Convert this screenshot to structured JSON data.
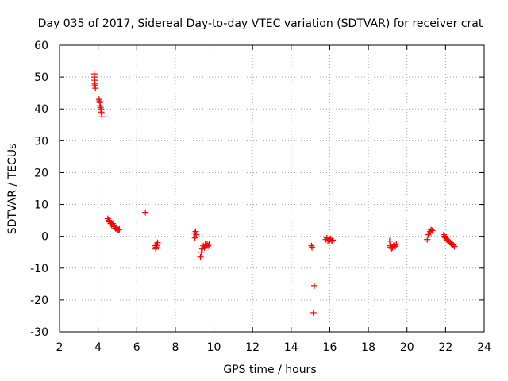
{
  "chart_data": {
    "type": "scatter",
    "title": "Day 035 of 2017, Sidereal Day-to-day VTEC variation (SDTVAR) for receiver crat",
    "xlabel": "GPS time / hours",
    "ylabel": "SDTVAR / TECUs",
    "xlim": [
      2,
      24
    ],
    "ylim": [
      -30,
      60
    ],
    "xticks": [
      2,
      4,
      6,
      8,
      10,
      12,
      14,
      16,
      18,
      20,
      22,
      24
    ],
    "yticks": [
      -30,
      -20,
      -10,
      0,
      10,
      20,
      30,
      40,
      50,
      60
    ],
    "xtick_labels": [
      "2",
      "4",
      "6",
      "8",
      "10",
      "12",
      "14",
      "16",
      "18",
      "20",
      "22",
      "24"
    ],
    "ytick_labels": [
      "-30",
      "-20",
      "-10",
      "0",
      "10",
      "20",
      "30",
      "40",
      "50",
      "60"
    ],
    "grid": true,
    "marker": "plus",
    "series": [
      {
        "name": "SDTVAR",
        "color": "#ff0000",
        "x": [
          3.8,
          3.81,
          3.82,
          3.83,
          3.84,
          3.86,
          4.05,
          4.07,
          4.09,
          4.1,
          4.12,
          4.14,
          4.16,
          4.18,
          4.2,
          4.5,
          4.55,
          4.6,
          4.65,
          4.7,
          4.75,
          4.8,
          4.85,
          4.9,
          4.95,
          5.0,
          5.05,
          5.1,
          6.45,
          6.95,
          6.98,
          7.0,
          7.02,
          7.05,
          7.08,
          9.0,
          9.02,
          9.05,
          9.08,
          9.3,
          9.35,
          9.4,
          9.45,
          9.5,
          9.55,
          9.6,
          9.65,
          9.7,
          9.75,
          15.05,
          15.08,
          15.15,
          15.2,
          15.8,
          15.85,
          15.9,
          15.95,
          16.0,
          16.05,
          16.1,
          16.15,
          19.1,
          19.12,
          19.15,
          19.2,
          19.25,
          19.3,
          19.35,
          19.4,
          19.45,
          21.05,
          21.1,
          21.15,
          21.2,
          21.25,
          21.3,
          21.9,
          21.95,
          22.0,
          22.05,
          22.1,
          22.15,
          22.2,
          22.25,
          22.3,
          22.35,
          22.4,
          22.45
        ],
        "y": [
          51,
          50,
          49,
          48,
          47.5,
          46.5,
          43,
          42.5,
          42,
          41,
          40.5,
          40,
          39,
          38.5,
          37.5,
          5.5,
          5,
          4.5,
          4,
          3.5,
          4,
          3.5,
          3,
          2.5,
          2.5,
          2,
          2,
          2.2,
          7.5,
          -3,
          -4,
          -3.5,
          -2.5,
          -3,
          -2,
          1,
          -0.5,
          1.5,
          0.5,
          -6.5,
          -5,
          -4,
          -3,
          -3.5,
          -2.5,
          -3,
          -2.5,
          -3,
          -2.5,
          -3,
          -3.5,
          -24,
          -15.5,
          -1,
          -0.5,
          -1.5,
          -1,
          -1.2,
          -0.8,
          -1.5,
          -1.2,
          -1.5,
          -3,
          -3.5,
          -3.8,
          -3.5,
          -3,
          -2.8,
          -3.2,
          -2.5,
          -1,
          0.5,
          1,
          1.5,
          2,
          1.8,
          0.5,
          0,
          -0.5,
          -0.8,
          -1.2,
          -1.5,
          -1.8,
          -2,
          -2.3,
          -2.6,
          -2.8,
          -3.2
        ]
      }
    ]
  }
}
